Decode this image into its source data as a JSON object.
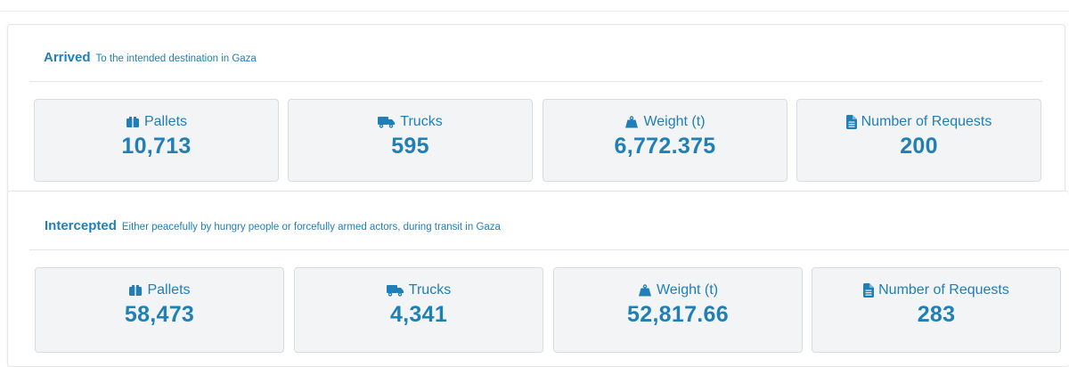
{
  "colors": {
    "accent": "#1f7fb6",
    "card_background": "#f3f4f6",
    "card_border": "#d9dbde"
  },
  "arrived": {
    "title": "Arrived",
    "subtitle": "To the intended destination in Gaza",
    "stats": [
      {
        "icon": "pallet-icon",
        "label": "Pallets",
        "value": "10,713"
      },
      {
        "icon": "truck-icon",
        "label": "Trucks",
        "value": "595"
      },
      {
        "icon": "weight-icon",
        "label": "Weight (t)",
        "value": "6,772.375"
      },
      {
        "icon": "document-icon",
        "label": "Number of Requests",
        "value": "200"
      }
    ]
  },
  "intercepted": {
    "title": "Intercepted",
    "subtitle": "Either peacefully by hungry people or forcefully armed actors, during transit in Gaza",
    "stats": [
      {
        "icon": "pallet-icon",
        "label": "Pallets",
        "value": "58,473"
      },
      {
        "icon": "truck-icon",
        "label": "Trucks",
        "value": "4,341"
      },
      {
        "icon": "weight-icon",
        "label": "Weight (t)",
        "value": "52,817.66"
      },
      {
        "icon": "document-icon",
        "label": "Number of Requests",
        "value": "283"
      }
    ]
  }
}
